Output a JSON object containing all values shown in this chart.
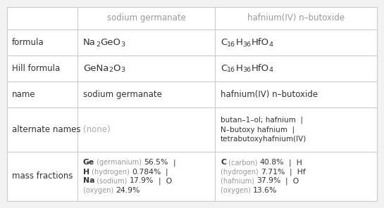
{
  "bg_color": "#f2f2f2",
  "table_bg": "#ffffff",
  "header_text_color": "#999999",
  "cell_text_color": "#333333",
  "none_color": "#aaaaaa",
  "element_name_color": "#999999",
  "figsize": [
    5.45,
    2.96
  ],
  "dpi": 100,
  "col_headers": [
    "sodium germanate",
    "hafnium(IV) n–butoxide"
  ],
  "row_labels": [
    "formula",
    "Hill formula",
    "name",
    "alternate names",
    "mass fractions"
  ]
}
